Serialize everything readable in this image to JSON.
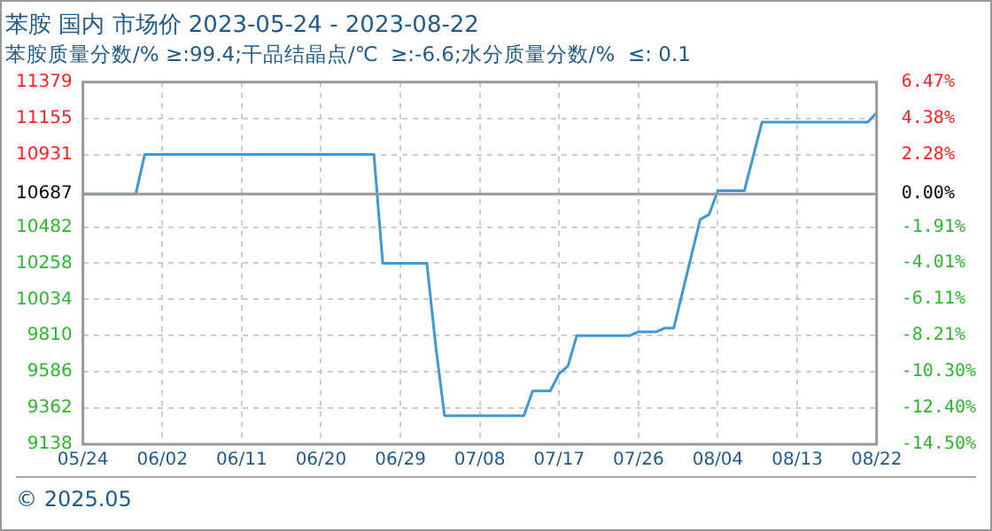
{
  "chart_data": {
    "type": "line",
    "title": "苯胺 国内 市场价 2023-05-24 - 2023-08-22",
    "subtitle": "苯胺质量分数/% ≥:99.4;干品结晶点/℃  ≥:-6.6;水分质量分数/%  ≤: 0.1",
    "x": [
      "2023-05-24",
      "2023-05-30",
      "2023-05-31",
      "2023-06-26",
      "2023-06-27",
      "2023-07-02",
      "2023-07-03",
      "2023-07-04",
      "2023-07-13",
      "2023-07-14",
      "2023-07-16",
      "2023-07-17",
      "2023-07-18",
      "2023-07-19",
      "2023-07-25",
      "2023-07-26",
      "2023-07-28",
      "2023-07-29",
      "2023-07-30",
      "2023-08-02",
      "2023-08-03",
      "2023-08-04",
      "2023-08-07",
      "2023-08-09",
      "2023-08-21",
      "2023-08-22"
    ],
    "series": [
      {
        "color": "#3d9ad6",
        "values": [
          10687,
          10687,
          10931,
          10931,
          10258,
          10258,
          9750,
          9315,
          9315,
          9468,
          9468,
          9575,
          9622,
          9810,
          9810,
          9834,
          9834,
          9857,
          9857,
          10530,
          10560,
          10707,
          10707,
          11131,
          11131,
          11190
        ]
      }
    ],
    "xlim": [
      "2023-05-24",
      "2023-08-22"
    ],
    "xticks": [
      {
        "value": "2023-05-24",
        "label": "05/24"
      },
      {
        "value": "2023-06-02",
        "label": "06/02"
      },
      {
        "value": "2023-06-11",
        "label": "06/11"
      },
      {
        "value": "2023-06-20",
        "label": "06/20"
      },
      {
        "value": "2023-06-29",
        "label": "06/29"
      },
      {
        "value": "2023-07-08",
        "label": "07/08"
      },
      {
        "value": "2023-07-17",
        "label": "07/17"
      },
      {
        "value": "2023-07-26",
        "label": "07/26"
      },
      {
        "value": "2023-08-04",
        "label": "08/04"
      },
      {
        "value": "2023-08-13",
        "label": "08/13"
      },
      {
        "value": "2023-08-22",
        "label": "08/22"
      }
    ],
    "ylim": [
      9138,
      11379
    ],
    "yticks": [
      9138,
      9362,
      9586,
      9810,
      10034,
      10258,
      10482,
      10687,
      10931,
      11155,
      11379
    ],
    "y2lim": [
      -14.5,
      6.47
    ],
    "y2ticks": [
      {
        "value": -14.5,
        "label": "-14.50%"
      },
      {
        "value": -12.4,
        "label": "-12.40%"
      },
      {
        "value": -10.3,
        "label": "-10.30%"
      },
      {
        "value": -8.21,
        "label": "-8.21%"
      },
      {
        "value": -6.11,
        "label": "-6.11%"
      },
      {
        "value": -4.01,
        "label": "-4.01%"
      },
      {
        "value": -1.91,
        "label": "-1.91%"
      },
      {
        "value": 0,
        "label": "0.00%"
      },
      {
        "value": 2.28,
        "label": "2.28%"
      },
      {
        "value": 4.38,
        "label": "4.38%"
      },
      {
        "value": 6.47,
        "label": "6.47%"
      }
    ],
    "ref_lines": [
      {
        "axis": "y",
        "value": 10687,
        "color": "#999999"
      }
    ],
    "grid": true,
    "legend": false,
    "marker": "none",
    "line_style": "solid",
    "annotations": [
      "© 2025.05"
    ]
  }
}
